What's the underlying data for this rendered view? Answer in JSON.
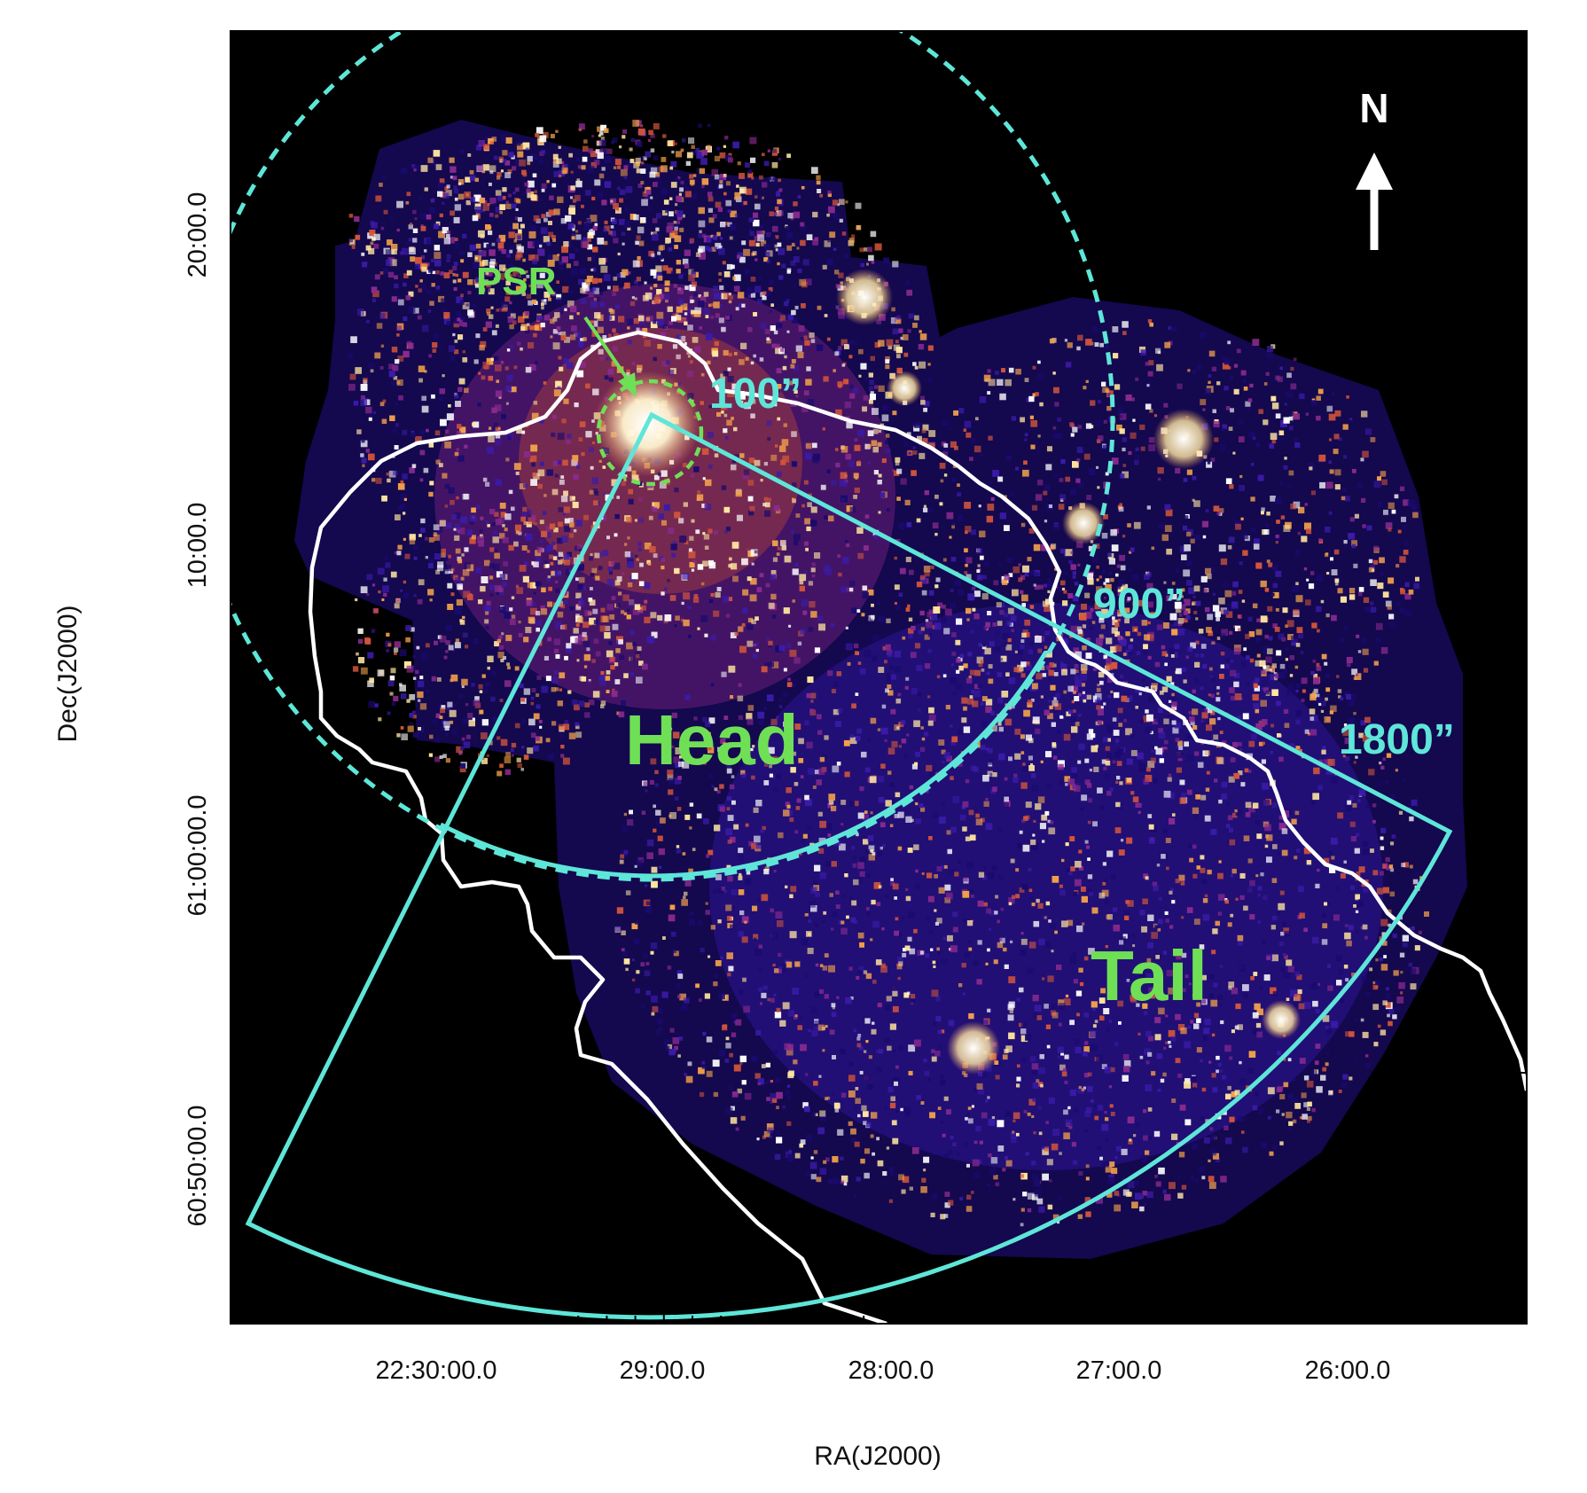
{
  "axes": {
    "xlabel": "RA(J2000)",
    "ylabel": "Dec(J2000)",
    "x_ticks": [
      "22:30:00.0",
      "29:00.0",
      "28:00.0",
      "27:00.0",
      "26:00.0"
    ],
    "y_ticks": [
      "20:00.0",
      "10:00.0",
      "61:00:00.0",
      "60:50:00.0"
    ]
  },
  "annotations": {
    "psr": "PSR",
    "head": "Head",
    "tail": "Tail",
    "r100": "100”",
    "r900": "900”",
    "r1800": "1800”",
    "north": "N"
  },
  "colors": {
    "background": "#000000",
    "region_cyan": "#5ee6d8",
    "contour_white": "#ffffff",
    "label_green": "#6fe055",
    "emission_colormap": [
      "#1a0a6e",
      "#3a1ba8",
      "#8a2a8e",
      "#d2553a",
      "#f2a14a",
      "#ffe6a0",
      "#ffffff"
    ]
  }
}
